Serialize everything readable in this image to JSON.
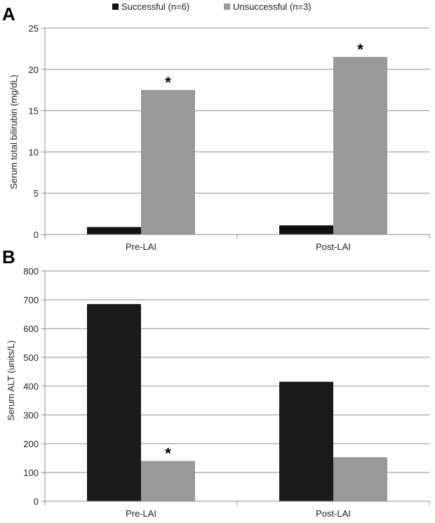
{
  "legend": {
    "items": [
      {
        "label": "Successful (n=6)",
        "color": "#111111"
      },
      {
        "label": "Unsuccessful (n=3)",
        "color": "#999999"
      }
    ]
  },
  "chart_data": [
    {
      "type": "bar",
      "panel": "A",
      "categories": [
        "Pre-LAI",
        "Post-LAI"
      ],
      "series": [
        {
          "name": "Successful (n=6)",
          "values": [
            0.9,
            1.1
          ],
          "color": "#111111"
        },
        {
          "name": "Unsuccessful (n=3)",
          "values": [
            17.5,
            21.5
          ],
          "color": "#999999"
        }
      ],
      "ylabel": "Serum total bilirubin (mg/dL)",
      "ylim": [
        0,
        25
      ],
      "yticks": [
        "0",
        "5",
        "10",
        "15",
        "20",
        "25"
      ],
      "grid": true,
      "legend": "top",
      "annotations": [
        {
          "text": "*",
          "category": "Pre-LAI",
          "series": "Unsuccessful (n=3)"
        },
        {
          "text": "*",
          "category": "Post-LAI",
          "series": "Unsuccessful (n=3)"
        }
      ]
    },
    {
      "type": "bar",
      "panel": "B",
      "categories": [
        "Pre-LAI",
        "Post-LAI"
      ],
      "series": [
        {
          "name": "Successful (n=6)",
          "values": [
            685,
            415
          ],
          "color": "#1a1a1a"
        },
        {
          "name": "Unsuccessful (n=3)",
          "values": [
            140,
            153
          ],
          "color": "#999999"
        }
      ],
      "ylabel": "Serum ALT (units/L)",
      "ylim": [
        0,
        800
      ],
      "yticks": [
        "0",
        "100",
        "200",
        "300",
        "400",
        "500",
        "600",
        "700",
        "800"
      ],
      "grid": true,
      "annotations": [
        {
          "text": "*",
          "category": "Pre-LAI",
          "series": "Unsuccessful (n=3)"
        }
      ]
    }
  ]
}
